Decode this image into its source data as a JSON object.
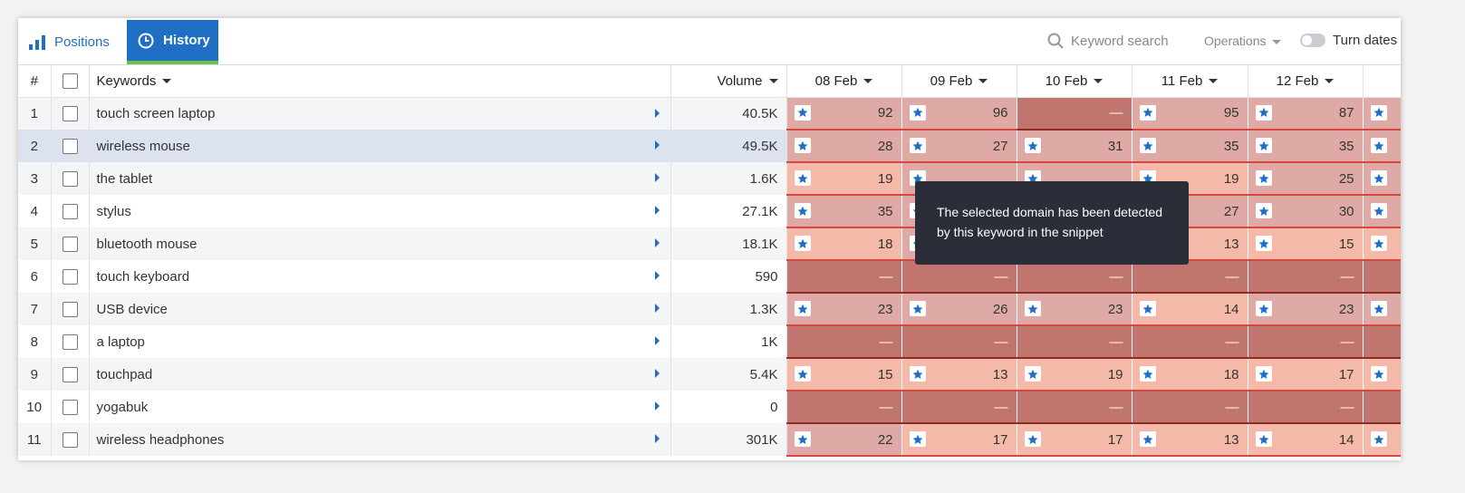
{
  "tabs": [
    "Positions",
    "History"
  ],
  "search_placeholder": "Keyword search",
  "operations": "Operations",
  "toggle_label": "Turn dates",
  "table": {
    "headers": {
      "number": "#",
      "keywords": "Keywords",
      "volume": "Volume",
      "dates": [
        "08 Feb",
        "09 Feb",
        "10 Feb",
        "11 Feb",
        "12 Feb"
      ]
    },
    "rows": [
      {
        "number": 1,
        "keyword": "touch screen laptop",
        "volume": "40.5K",
        "positions": [
          92,
          96,
          "—",
          95,
          87
        ]
      },
      {
        "number": 2,
        "keyword": "wireless mouse",
        "volume": "49.5K",
        "positions": [
          28,
          27,
          31,
          35,
          35
        ]
      },
      {
        "number": 3,
        "keyword": "the tablet",
        "volume": "1.6K",
        "positions": [
          19,
          null,
          null,
          19,
          25
        ]
      },
      {
        "number": 4,
        "keyword": "stylus",
        "volume": "27.1K",
        "positions": [
          35,
          null,
          null,
          27,
          30
        ]
      },
      {
        "number": 5,
        "keyword": "bluetooth mouse",
        "volume": "18.1K",
        "positions": [
          18,
          null,
          null,
          13,
          15
        ]
      },
      {
        "number": 6,
        "keyword": "touch keyboard",
        "volume": "590",
        "positions": [
          "—",
          "—",
          "—",
          "—",
          "—"
        ]
      },
      {
        "number": 7,
        "keyword": "USB device",
        "volume": "1.3K",
        "positions": [
          23,
          26,
          23,
          14,
          23
        ]
      },
      {
        "number": 8,
        "keyword": "a laptop",
        "volume": "1K",
        "positions": [
          "—",
          "—",
          "—",
          "—",
          "—"
        ]
      },
      {
        "number": 9,
        "keyword": "touchpad",
        "volume": "5.4K",
        "positions": [
          15,
          13,
          19,
          18,
          17
        ]
      },
      {
        "number": 10,
        "keyword": "yogabuk",
        "volume": "0",
        "positions": [
          "—",
          "—",
          "—",
          "—",
          "—"
        ]
      },
      {
        "number": 11,
        "keyword": "wireless headphones",
        "volume": "301K",
        "positions": [
          22,
          17,
          17,
          13,
          14
        ]
      }
    ]
  },
  "tooltip": "The selected domain has been detected by this keyword in the snippet"
}
